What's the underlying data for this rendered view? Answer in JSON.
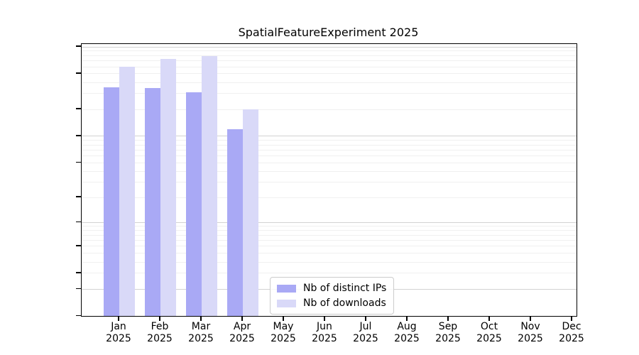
{
  "chart_data": {
    "type": "bar",
    "title": "SpatialFeatureExperiment 2025",
    "year": "2025",
    "categories": [
      "Jan",
      "Feb",
      "Mar",
      "Apr",
      "May",
      "Jun",
      "Jul",
      "Aug",
      "Sep",
      "Oct",
      "Nov",
      "Dec"
    ],
    "series": [
      {
        "name": "Nb of distinct IPs",
        "color": "#a9a9f5",
        "values": [
          355,
          350,
          310,
          120,
          null,
          null,
          null,
          null,
          null,
          null,
          null,
          null
        ]
      },
      {
        "name": "Nb of downloads",
        "color": "#d9d9f8",
        "values": [
          600,
          740,
          795,
          200,
          null,
          null,
          null,
          null,
          null,
          null,
          null,
          null
        ]
      }
    ],
    "yscale": "log10(v+1)",
    "yticks": [
      1000,
      500,
      200,
      100,
      50,
      20,
      10,
      5,
      2,
      1,
      0
    ],
    "ylim": [
      0,
      1085
    ],
    "grid": true,
    "legend_position": "lower center",
    "xlabel": "",
    "ylabel": ""
  },
  "colors": {
    "axis": "#000000",
    "grid_major": "#d2d2d2",
    "grid_minor": "#f0f0f0",
    "background": "#ffffff"
  }
}
